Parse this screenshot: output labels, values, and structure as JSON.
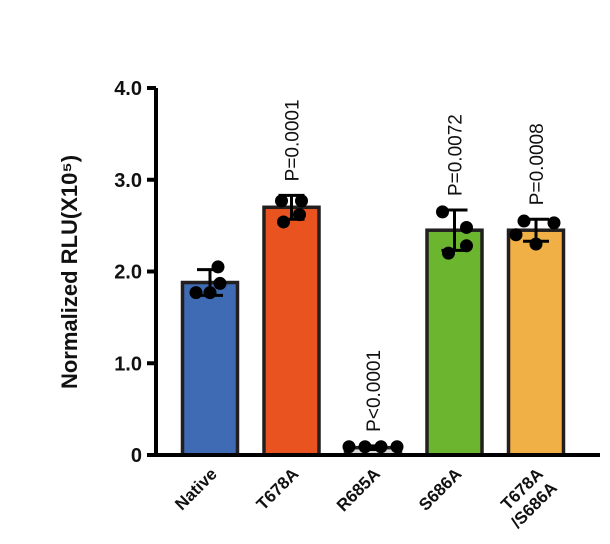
{
  "chart_data": {
    "type": "bar",
    "title": "",
    "xlabel": "",
    "ylabel": "Normalized RLU(X10⁵)",
    "ylim": [
      0,
      4.0
    ],
    "yticks": [
      {
        "value": 0,
        "label": "0"
      },
      {
        "value": 1.0,
        "label": "1.0"
      },
      {
        "value": 2.0,
        "label": "2.0"
      },
      {
        "value": 3.0,
        "label": "3.0"
      },
      {
        "value": 4.0,
        "label": "4.0"
      }
    ],
    "grid": false,
    "categories": [
      {
        "lines": [
          "Native"
        ]
      },
      {
        "lines": [
          "T678A"
        ]
      },
      {
        "lines": [
          "R685A"
        ]
      },
      {
        "lines": [
          "S686A"
        ]
      },
      {
        "lines": [
          "T678A",
          "/S686A"
        ]
      }
    ],
    "values": [
      1.88,
      2.7,
      0.08,
      2.45,
      2.45
    ],
    "errors": [
      0.14,
      0.13,
      0.02,
      0.22,
      0.12
    ],
    "points": [
      [
        2.05,
        1.87,
        1.77,
        1.77
      ],
      [
        2.77,
        2.77,
        2.62,
        2.54
      ],
      [
        0.09,
        0.09,
        0.09,
        0.09
      ],
      [
        2.65,
        2.48,
        2.28,
        2.2
      ],
      [
        2.55,
        2.53,
        2.4,
        2.3
      ]
    ],
    "colors": [
      "#3e6bb4",
      "#e8531f",
      "#d9d9d9",
      "#6bb52f",
      "#f0b045"
    ],
    "annotations": [
      "",
      "P=0.0001",
      "P<0.0001",
      "P=0.0072",
      "P=0.0008"
    ]
  }
}
